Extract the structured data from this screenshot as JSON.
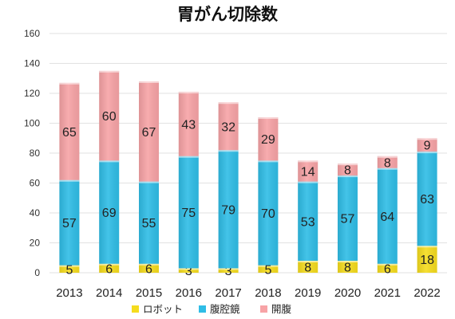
{
  "chart_data": {
    "type": "bar",
    "stacked": true,
    "title": "胃がん切除数",
    "categories": [
      "2013",
      "2014",
      "2015",
      "2016",
      "2017",
      "2018",
      "2019",
      "2020",
      "2021",
      "2022"
    ],
    "series": [
      {
        "name": "ロボット",
        "color": "#f5dc1e",
        "values": [
          5,
          6,
          6,
          3,
          3,
          5,
          8,
          8,
          6,
          18
        ]
      },
      {
        "name": "腹腔鏡",
        "color": "#2fbde6",
        "values": [
          57,
          69,
          55,
          75,
          79,
          70,
          53,
          57,
          64,
          63
        ]
      },
      {
        "name": "開腹",
        "color": "#f7a3a6",
        "values": [
          65,
          60,
          67,
          43,
          32,
          29,
          14,
          8,
          8,
          9
        ]
      }
    ],
    "ylim": [
      0,
      160
    ],
    "yticks": [
      0,
      20,
      40,
      60,
      80,
      100,
      120,
      140,
      160
    ],
    "grid": true,
    "legend_position": "bottom"
  }
}
